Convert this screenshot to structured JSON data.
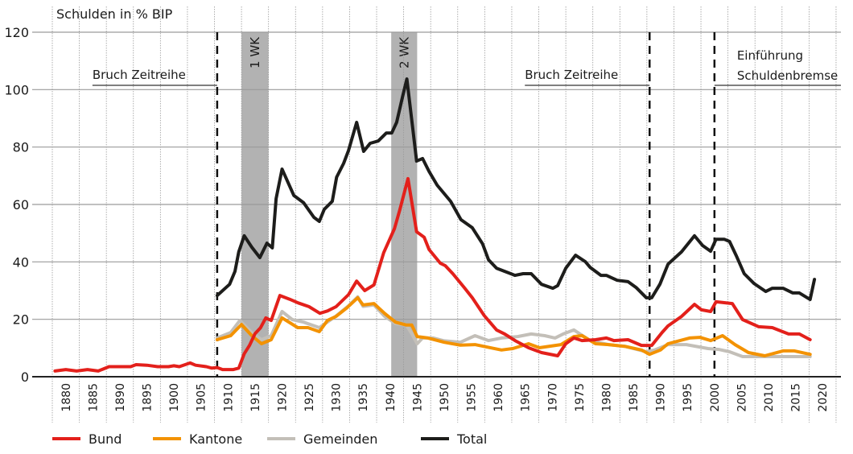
{
  "chart_data": {
    "type": "line",
    "title": "Schulden in % BIP",
    "xlabel": "",
    "ylabel": "",
    "ylim": [
      0,
      120
    ],
    "yticks": [
      "0",
      "20",
      "40",
      "60",
      "80",
      "100",
      "120"
    ],
    "xticks": [
      "1880",
      "1885",
      "1890",
      "1895",
      "1900",
      "1905",
      "1910",
      "1915",
      "1920",
      "1925",
      "1930",
      "1935",
      "1940",
      "1945",
      "1950",
      "1955",
      "1960",
      "1965",
      "1970",
      "1975",
      "1980",
      "1985",
      "1990",
      "1995",
      "2000",
      "2005",
      "2010",
      "2015",
      "2020"
    ],
    "grid": true,
    "legend_placement": "bottom",
    "shaded_periods": [
      {
        "label": "1 WK",
        "start": 1912.5,
        "end": 1917.5
      },
      {
        "label": "2 WK",
        "start": 1940.2,
        "end": 1945
      }
    ],
    "markers": [
      {
        "year": 1908,
        "label": "Bruch Zeitreihe",
        "side": "left"
      },
      {
        "year": 1988,
        "label": "Bruch Zeitreihe",
        "side": "left"
      },
      {
        "year": 2000,
        "label": "Einführung\nSchuldenbremse",
        "label_lines": [
          "Einführung",
          "Schuldenbremse"
        ],
        "side": "right"
      }
    ],
    "series": [
      {
        "name": "Bund",
        "color": "#e3201b",
        "x": [
          1878,
          1880,
          1882,
          1884,
          1886,
          1888,
          1890,
          1892,
          1893,
          1895,
          1897,
          1899,
          1900,
          1901,
          1903,
          1904,
          1906,
          1907,
          1908,
          1909,
          1911,
          1912,
          1913,
          1914,
          1915,
          1916,
          1917,
          1918,
          1919.6,
          1921.4,
          1923,
          1925,
          1927,
          1928.4,
          1930,
          1932.3,
          1933.8,
          1935.3,
          1937,
          1938.8,
          1940.8,
          1941.8,
          1943.3,
          1944.9,
          1946.3,
          1947.2,
          1949.3,
          1950.2,
          1951.6,
          1953.7,
          1955.2,
          1957.4,
          1959.7,
          1961.2,
          1963.1,
          1965.6,
          1968,
          1971,
          1972.5,
          1974,
          1975.5,
          1978,
          1980,
          1981.4,
          1984,
          1986.5,
          1988.4,
          1990.3,
          1991.4,
          1993.9,
          1996.3,
          1997.6,
          1999.3,
          2000.3,
          2003.3,
          2005.2,
          2008.2,
          2010.7,
          2013.7,
          2015.7,
          2017.7
        ],
        "y": [
          2,
          2.5,
          2,
          2.5,
          2,
          3.5,
          3.5,
          3.5,
          4.2,
          4,
          3.5,
          3.5,
          3.8,
          3.5,
          4.8,
          4,
          3.5,
          3,
          3.2,
          2.5,
          2.5,
          3,
          8,
          11,
          15,
          17,
          20.5,
          19.6,
          28.3,
          27,
          25.7,
          24.4,
          22.1,
          22.9,
          24.4,
          28.6,
          33.3,
          30,
          32,
          43.2,
          51.6,
          58.2,
          69,
          50.5,
          48.6,
          44.3,
          39.5,
          38.7,
          35.9,
          31.1,
          27.5,
          21.3,
          16.3,
          14.9,
          12.6,
          10.1,
          8.4,
          7.3,
          11.5,
          13.5,
          12.6,
          12.9,
          13.5,
          12.6,
          12.9,
          10.9,
          10.9,
          15.4,
          17.7,
          21,
          25.2,
          23.3,
          22.7,
          26.1,
          25.5,
          19.9,
          17.4,
          17.1,
          14.9,
          14.9,
          12.9
        ]
      },
      {
        "name": "Kantone",
        "color": "#f39200",
        "x": [
          1908,
          1910.5,
          1912.5,
          1914.4,
          1916.2,
          1918,
          1920,
          1922.9,
          1924.8,
          1926.9,
          1928.4,
          1930,
          1932,
          1934,
          1935,
          1937,
          1939,
          1941,
          1943,
          1944,
          1945,
          1947,
          1950,
          1953,
          1955.7,
          1960.6,
          1962.7,
          1965.6,
          1967.6,
          1971.6,
          1974,
          1975.5,
          1978,
          1980.4,
          1983.4,
          1986.5,
          1988,
          1990,
          1991.4,
          1995.4,
          1997.3,
          1999.3,
          2001.5,
          2003.8,
          2006.3,
          2009.3,
          2012.7,
          2014.8,
          2017.7
        ],
        "y": [
          12.9,
          14.3,
          18.2,
          14.3,
          11.5,
          12.9,
          20.5,
          17.1,
          17.1,
          15.7,
          19.6,
          21,
          24,
          27.5,
          25,
          25.5,
          22,
          19,
          18,
          18,
          14,
          13.5,
          12,
          11,
          11.2,
          9.3,
          9.8,
          11.5,
          10.1,
          11.2,
          14,
          14.3,
          11.5,
          11.2,
          10.6,
          9.3,
          7.8,
          9.3,
          11.5,
          13.5,
          13.7,
          12.6,
          14.3,
          11.2,
          8.4,
          7.3,
          9,
          9,
          7.8
        ]
      },
      {
        "name": "Gemeinden",
        "color": "#c3bfb8",
        "x": [
          1908,
          1910.5,
          1912.2,
          1914.4,
          1916.2,
          1918,
          1920,
          1921.9,
          1924,
          1926.9,
          1929.9,
          1932.3,
          1934,
          1935,
          1937,
          1939,
          1941,
          1943,
          1944,
          1945,
          1946,
          1948,
          1950,
          1953,
          1955.7,
          1958.2,
          1960.6,
          1963.6,
          1966.1,
          1968.6,
          1970.5,
          1972,
          1974,
          1977,
          1980.4,
          1983.4,
          1987.4,
          1988.9,
          1991.4,
          1994.8,
          1998.8,
          2000.8,
          2002.8,
          2005.2,
          2009.3,
          2017.7
        ],
        "y": [
          13.5,
          15.4,
          19.6,
          15.4,
          12.9,
          14.3,
          22.7,
          19.9,
          19,
          17.1,
          21,
          24.7,
          27.8,
          24.5,
          25,
          21,
          18.5,
          18,
          15,
          11.5,
          13.5,
          13.5,
          12.5,
          12,
          14.3,
          12.6,
          13.5,
          14,
          14.9,
          14.3,
          13.5,
          14.9,
          16.3,
          12.6,
          11.2,
          10.6,
          8.7,
          9.3,
          11.2,
          11.2,
          9.8,
          9.5,
          8.7,
          7,
          7,
          7
        ]
      },
      {
        "name": "Total",
        "color": "#1d1d1b",
        "x": [
          1908,
          1910.3,
          1911.3,
          1912,
          1913,
          1914.4,
          1915.9,
          1917.2,
          1918.2,
          1918.9,
          1920,
          1922.2,
          1924,
          1925.9,
          1926.9,
          1927.8,
          1929.3,
          1930.1,
          1931.4,
          1932.3,
          1933.8,
          1935.1,
          1936.3,
          1937.8,
          1939.3,
          1940.3,
          1941.2,
          1942.3,
          1943.1,
          1944.2,
          1944.9,
          1946,
          1947.2,
          1948.7,
          1951.2,
          1953.1,
          1955.2,
          1957.1,
          1958.2,
          1959.7,
          1961.2,
          1963.1,
          1964.6,
          1966.1,
          1968,
          1970.1,
          1971,
          1972.5,
          1974.3,
          1976.1,
          1977,
          1979,
          1980,
          1982,
          1984,
          1985.5,
          1987.4,
          1988.4,
          1989.9,
          1991.4,
          1993.9,
          1996.3,
          1997.8,
          1999.3,
          2000.3,
          2001.8,
          2002.8,
          2004,
          2005.5,
          2007.3,
          2009.5,
          2010.7,
          2012.7,
          2014.5,
          2015.7,
          2017.7,
          2018.5
        ],
        "y": [
          28.3,
          32.2,
          36.7,
          43.5,
          49.1,
          45.1,
          41.5,
          46.5,
          44.9,
          62,
          72.3,
          63.1,
          60.6,
          55.5,
          54.1,
          58.3,
          61.1,
          69.5,
          74.3,
          78.8,
          88.6,
          78.5,
          81.3,
          82.1,
          84.9,
          84.9,
          88.6,
          97.6,
          103.7,
          86.3,
          75.1,
          76,
          71.5,
          66.7,
          61.1,
          54.7,
          51.9,
          46.3,
          40.7,
          37.8,
          36.7,
          35.3,
          35.9,
          35.9,
          32.2,
          30.8,
          31.7,
          37.8,
          42.3,
          40.1,
          38.1,
          35.3,
          35.3,
          33.6,
          33.1,
          31.1,
          27.5,
          27.5,
          32.2,
          39.2,
          43.5,
          49.1,
          45.7,
          43.7,
          47.9,
          47.9,
          47.1,
          42.3,
          35.9,
          32.5,
          29.7,
          30.8,
          30.8,
          29.2,
          29.2,
          26.9,
          33.9
        ]
      }
    ]
  }
}
